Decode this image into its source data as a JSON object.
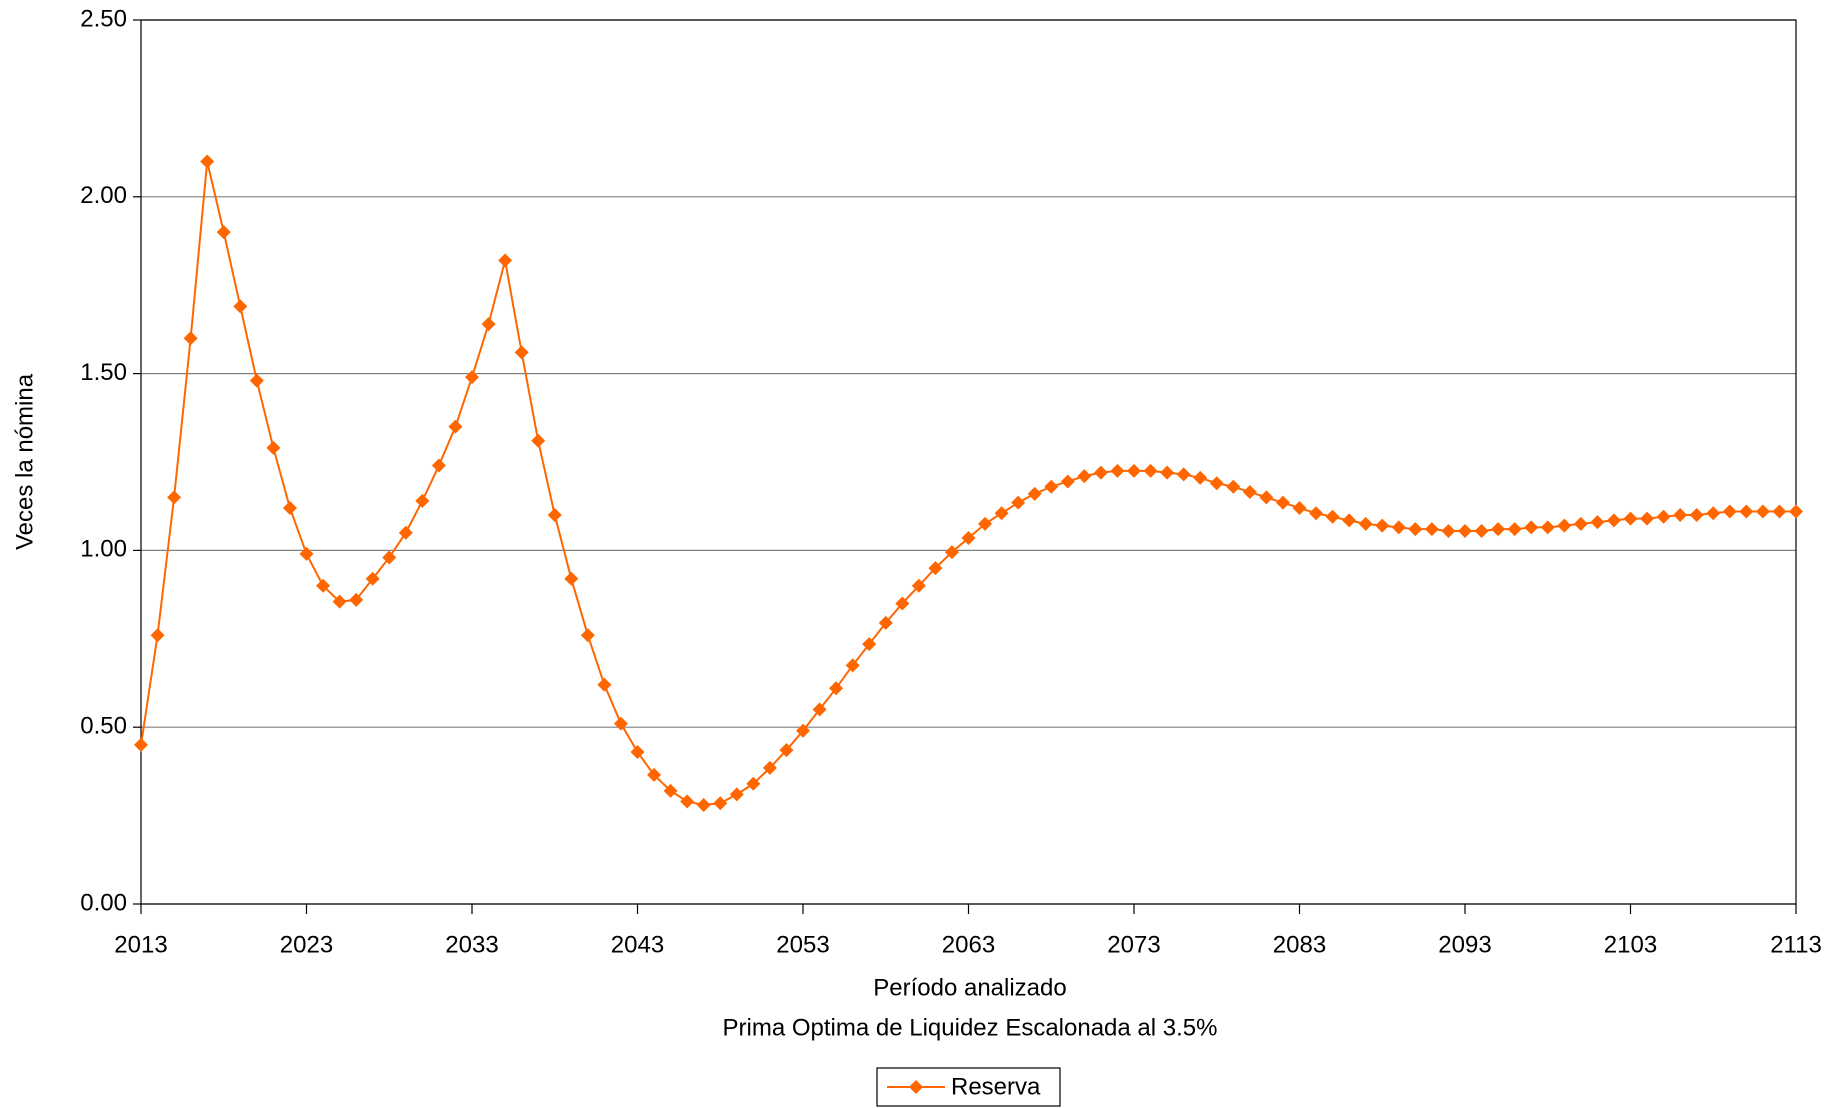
{
  "chart_data": {
    "type": "line",
    "xlabel": "Período analizado",
    "subtitle": "Prima Optima de Liquidez Escalonada al 3.5%",
    "ylabel": "Veces la nómina",
    "x": [
      2013,
      2014,
      2015,
      2016,
      2017,
      2018,
      2019,
      2020,
      2021,
      2022,
      2023,
      2024,
      2025,
      2026,
      2027,
      2028,
      2029,
      2030,
      2031,
      2032,
      2033,
      2034,
      2035,
      2036,
      2037,
      2038,
      2039,
      2040,
      2041,
      2042,
      2043,
      2044,
      2045,
      2046,
      2047,
      2048,
      2049,
      2050,
      2051,
      2052,
      2053,
      2054,
      2055,
      2056,
      2057,
      2058,
      2059,
      2060,
      2061,
      2062,
      2063,
      2064,
      2065,
      2066,
      2067,
      2068,
      2069,
      2070,
      2071,
      2072,
      2073,
      2074,
      2075,
      2076,
      2077,
      2078,
      2079,
      2080,
      2081,
      2082,
      2083,
      2084,
      2085,
      2086,
      2087,
      2088,
      2089,
      2090,
      2091,
      2092,
      2093,
      2094,
      2095,
      2096,
      2097,
      2098,
      2099,
      2100,
      2101,
      2102,
      2103,
      2104,
      2105,
      2106,
      2107,
      2108,
      2109,
      2110,
      2111,
      2112,
      2113
    ],
    "series": [
      {
        "name": "Reserva",
        "color": "#ff6600",
        "values": [
          0.45,
          0.76,
          1.15,
          1.6,
          2.1,
          1.9,
          1.69,
          1.48,
          1.29,
          1.12,
          0.99,
          0.9,
          0.855,
          0.86,
          0.92,
          0.98,
          1.05,
          1.14,
          1.24,
          1.35,
          1.49,
          1.64,
          1.82,
          1.56,
          1.31,
          1.1,
          0.92,
          0.76,
          0.62,
          0.51,
          0.43,
          0.365,
          0.32,
          0.29,
          0.28,
          0.285,
          0.31,
          0.34,
          0.385,
          0.435,
          0.49,
          0.55,
          0.61,
          0.675,
          0.735,
          0.795,
          0.85,
          0.9,
          0.95,
          0.995,
          1.035,
          1.075,
          1.105,
          1.135,
          1.16,
          1.18,
          1.195,
          1.21,
          1.22,
          1.225,
          1.225,
          1.225,
          1.22,
          1.215,
          1.205,
          1.19,
          1.18,
          1.165,
          1.15,
          1.135,
          1.12,
          1.105,
          1.095,
          1.085,
          1.075,
          1.07,
          1.065,
          1.06,
          1.06,
          1.055,
          1.055,
          1.055,
          1.06,
          1.06,
          1.065,
          1.065,
          1.07,
          1.075,
          1.08,
          1.085,
          1.09,
          1.09,
          1.095,
          1.1,
          1.1,
          1.105,
          1.11,
          1.11,
          1.11,
          1.11,
          1.11
        ]
      }
    ],
    "xlim": [
      2013,
      2113
    ],
    "xticks": [
      2013,
      2023,
      2033,
      2043,
      2053,
      2063,
      2073,
      2083,
      2093,
      2103,
      2113
    ],
    "ylim": [
      0,
      2.5
    ],
    "yticks": [
      {
        "value": 0,
        "label": "0.00"
      },
      {
        "value": 0.5,
        "label": "0.50"
      },
      {
        "value": 1,
        "label": "1.00"
      },
      {
        "value": 1.5,
        "label": "1.50"
      },
      {
        "value": 2,
        "label": "2.00"
      },
      {
        "value": 2.5,
        "label": "2.50"
      }
    ],
    "grid": true,
    "legend": "bottom"
  }
}
